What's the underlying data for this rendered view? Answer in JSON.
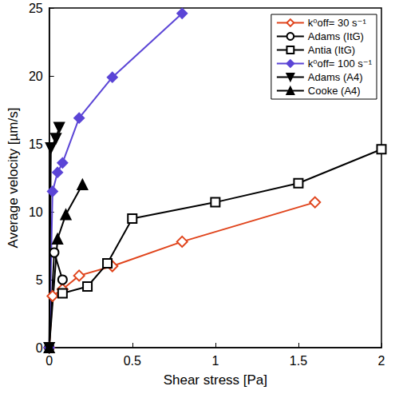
{
  "chart_data": {
    "type": "line",
    "x_label": "Shear stress [Pa]",
    "y_label": "Average velocity [µm/s]",
    "xlim": [
      0,
      2
    ],
    "xticks": [
      0,
      0.5,
      1,
      1.5,
      2
    ],
    "ylim": [
      0,
      25
    ],
    "yticks": [
      0,
      5,
      10,
      15,
      20,
      25
    ],
    "grid": false,
    "legend": "upper right",
    "series": [
      {
        "name": "k⁰off= 30 s⁻¹",
        "color": "#e0441c",
        "marker": "open-diamond",
        "x": [
          0,
          0.02,
          0.08,
          0.18,
          0.38,
          0.8,
          1.6
        ],
        "values": [
          0,
          3.8,
          4.3,
          5.3,
          6.0,
          7.8,
          10.7
        ]
      },
      {
        "name": "Adams (ItG)",
        "color": "#000000",
        "marker": "open-circle",
        "x": [
          0,
          0.03,
          0.08
        ],
        "values": [
          0,
          7.0,
          5.0
        ]
      },
      {
        "name": "Antia (ItG)",
        "color": "#000000",
        "marker": "open-square",
        "x": [
          0.08,
          0.23,
          0.35,
          0.5,
          1.0,
          1.5,
          2.0
        ],
        "values": [
          4.0,
          4.5,
          6.2,
          9.5,
          10.7,
          12.1,
          14.6
        ]
      },
      {
        "name": "k⁰off= 100 s⁻¹",
        "color": "#5b45d6",
        "marker": "diamond",
        "x": [
          0,
          0.02,
          0.05,
          0.08,
          0.18,
          0.38,
          0.8
        ],
        "values": [
          0,
          11.5,
          12.9,
          13.6,
          16.9,
          19.9,
          24.6
        ]
      },
      {
        "name": "Adams (A4)",
        "color": "#000000",
        "marker": "triangle-down",
        "x": [
          0,
          0.01,
          0.04,
          0.06
        ],
        "values": [
          0,
          14.7,
          15.4,
          16.2
        ]
      },
      {
        "name": "Cooke (A4)",
        "color": "#000000",
        "marker": "triangle",
        "x": [
          0,
          0.05,
          0.1,
          0.2
        ],
        "values": [
          0,
          8.0,
          9.8,
          12.0
        ]
      }
    ]
  }
}
